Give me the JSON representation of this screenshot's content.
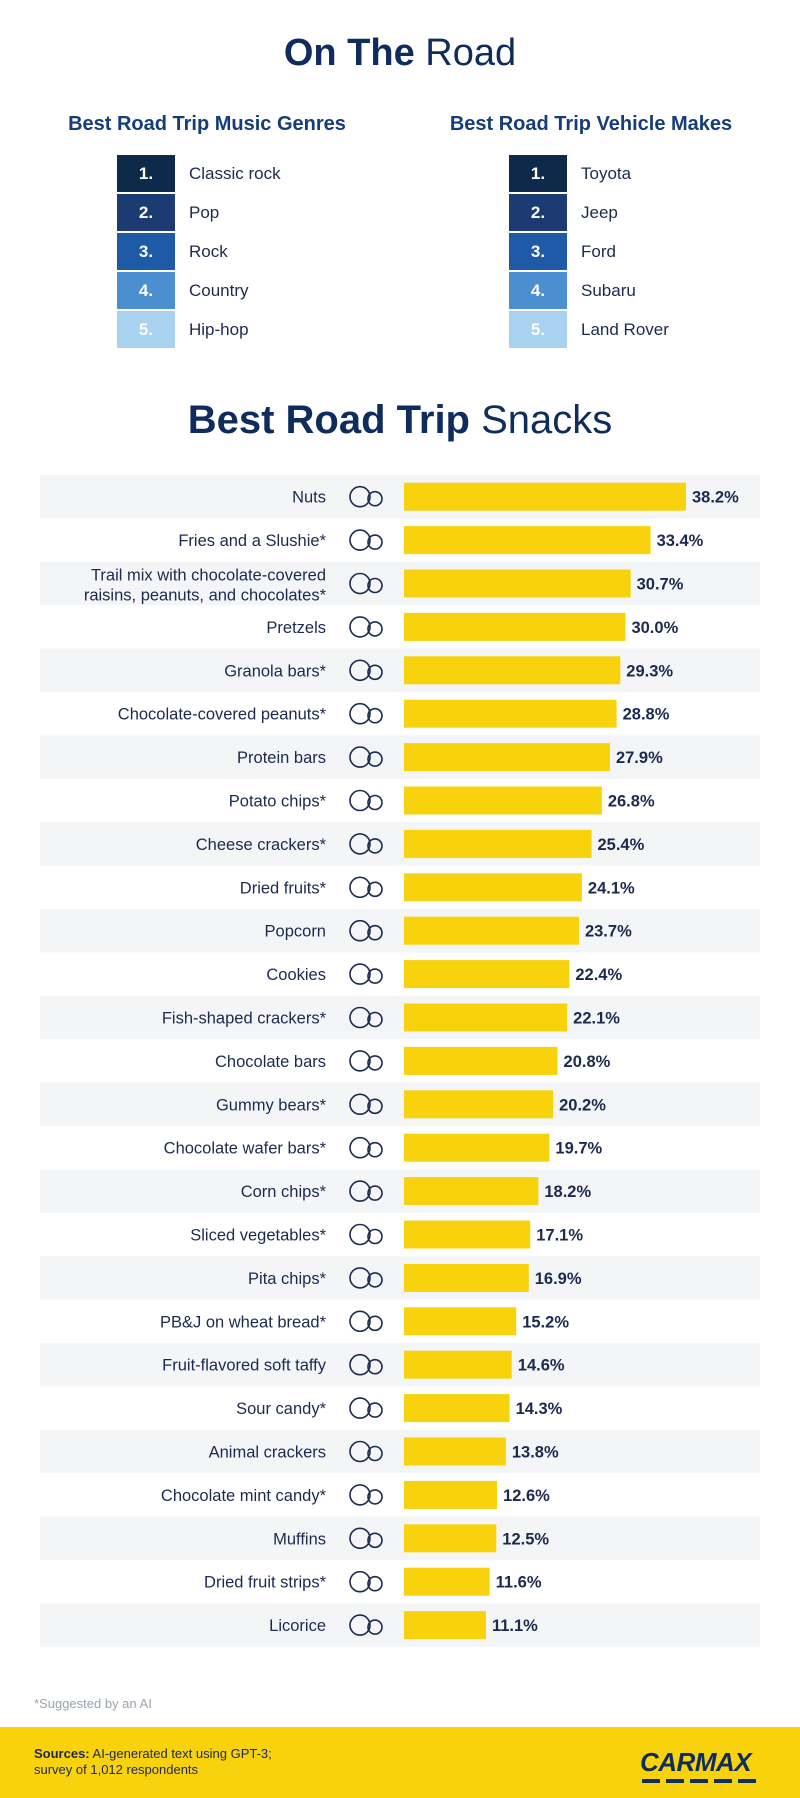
{
  "header": {
    "title_bold": "On The",
    "title_light": "Road"
  },
  "music": {
    "title": "Best Road Trip Music Genres",
    "items": [
      {
        "rank": "1.",
        "label": "Classic rock"
      },
      {
        "rank": "2.",
        "label": "Pop"
      },
      {
        "rank": "3.",
        "label": "Rock"
      },
      {
        "rank": "4.",
        "label": "Country"
      },
      {
        "rank": "5.",
        "label": "Hip-hop"
      }
    ]
  },
  "vehicles": {
    "title": "Best Road Trip Vehicle Makes",
    "items": [
      {
        "rank": "1.",
        "label": "Toyota"
      },
      {
        "rank": "2.",
        "label": "Jeep"
      },
      {
        "rank": "3.",
        "label": "Ford"
      },
      {
        "rank": "4.",
        "label": "Subaru"
      },
      {
        "rank": "5.",
        "label": "Land Rover"
      }
    ]
  },
  "colors": {
    "rank": [
      "#0d2a4b",
      "#1d3b73",
      "#1f5aa6",
      "#4b8fd1",
      "#a9d2f0"
    ],
    "bar": "#f8d20d",
    "stripe": "#f3f5f6",
    "text": "#1b2a4e"
  },
  "snacks": {
    "title_bold": "Best Road Trip",
    "title_light": "Snacks"
  },
  "chart_data": {
    "type": "bar",
    "orientation": "horizontal",
    "title": "Best Road Trip Snacks",
    "categories": [
      "Nuts",
      "Fries and a Slushie*",
      "Trail mix with  chocolate-covered|raisins, peanuts, and chocolates*",
      "Pretzels",
      "Granola bars*",
      "Chocolate-covered peanuts*",
      "Protein bars",
      "Potato chips*",
      "Cheese crackers*",
      "Dried fruits*",
      "Popcorn",
      "Cookies",
      "Fish-shaped crackers*",
      "Chocolate bars",
      "Gummy bears*",
      "Chocolate wafer bars*",
      "Corn chips*",
      "Sliced vegetables*",
      "Pita chips*",
      "PB&J on wheat bread*",
      "Fruit-flavored soft taffy",
      "Sour candy*",
      "Animal crackers",
      "Chocolate mint candy*",
      "Muffins",
      "Dried fruit strips*",
      "Licorice"
    ],
    "values": [
      38.2,
      33.4,
      30.7,
      30.0,
      29.3,
      28.8,
      27.9,
      26.8,
      25.4,
      24.1,
      23.7,
      22.4,
      22.1,
      20.8,
      20.2,
      19.7,
      18.2,
      17.1,
      16.9,
      15.2,
      14.6,
      14.3,
      13.8,
      12.6,
      12.5,
      11.6,
      11.1
    ],
    "value_labels": [
      "38.2%",
      "33.4%",
      "30.7%",
      "30.0%",
      "29.3%",
      "28.8%",
      "27.9%",
      "26.8%",
      "25.4%",
      "24.1%",
      "23.7%",
      "22.4%",
      "22.1%",
      "20.8%",
      "20.2%",
      "19.7%",
      "18.2%",
      "17.1%",
      "16.9%",
      "15.2%",
      "14.6%",
      "14.3%",
      "13.8%",
      "12.6%",
      "12.5%",
      "11.6%",
      "11.1%"
    ],
    "icons": [
      "nuts-icon",
      "fries-slushie-icon",
      "trail-mix-icon",
      "pretzel-icon",
      "granola-bar-icon",
      "chocolate-peanuts-icon",
      "protein-bar-icon",
      "potato-chips-icon",
      "cheese-crackers-icon",
      "dried-fruits-icon",
      "popcorn-icon",
      "cookie-icon",
      "fish-crackers-icon",
      "chocolate-bar-icon",
      "gummy-bears-icon",
      "wafer-bar-icon",
      "corn-chips-icon",
      "sliced-vegetables-icon",
      "pita-chips-icon",
      "pbj-sandwich-icon",
      "taffy-icon",
      "sour-candy-icon",
      "animal-crackers-icon",
      "mint-candy-icon",
      "muffin-icon",
      "fruit-strips-icon",
      "licorice-icon"
    ],
    "xlim": [
      0,
      38.2
    ],
    "unit": "%"
  },
  "footnote": "*Suggested by an AI",
  "footer": {
    "sources_label": "Sources:",
    "sources_text_1": "AI-generated text using GPT-3;",
    "sources_text_2": "survey of 1,012 respondents",
    "logo": "CARMAX"
  }
}
